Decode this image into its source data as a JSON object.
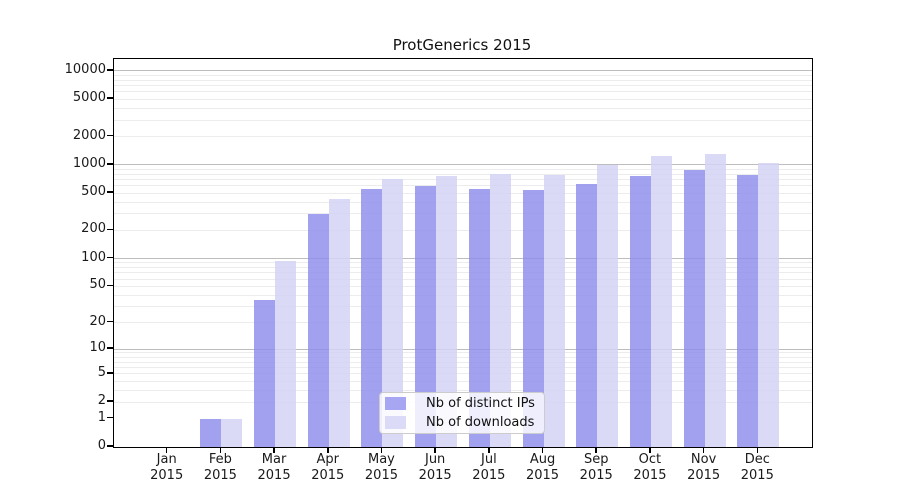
{
  "figure": {
    "background": "#ffffff"
  },
  "chart_data": {
    "type": "bar",
    "title": "ProtGenerics 2015",
    "x_tick_labels": [
      [
        "Jan",
        "2015"
      ],
      [
        "Feb",
        "2015"
      ],
      [
        "Mar",
        "2015"
      ],
      [
        "Apr",
        "2015"
      ],
      [
        "May",
        "2015"
      ],
      [
        "Jun",
        "2015"
      ],
      [
        "Jul",
        "2015"
      ],
      [
        "Aug",
        "2015"
      ],
      [
        "Sep",
        "2015"
      ],
      [
        "Oct",
        "2015"
      ],
      [
        "Nov",
        "2015"
      ],
      [
        "Dec",
        "2015"
      ]
    ],
    "series": [
      {
        "name": "Nb of distinct IPs",
        "color": "#a6a6f2",
        "fill": "rgba(140,140,237,0.82)",
        "values": [
          0,
          1,
          36,
          300,
          560,
          590,
          550,
          540,
          620,
          760,
          890,
          790
        ]
      },
      {
        "name": "Nb of downloads",
        "color": "#dbdbf8",
        "fill": "rgba(212,212,246,0.85)",
        "values": [
          0,
          1,
          94,
          430,
          710,
          770,
          800,
          780,
          1000,
          1250,
          1300,
          1060
        ]
      }
    ],
    "yscale": "log1p",
    "ylim": [
      0,
      13400
    ],
    "yticks": [
      0,
      1,
      2,
      5,
      10,
      20,
      50,
      100,
      200,
      500,
      1000,
      2000,
      5000,
      10000
    ],
    "grid": {
      "major_values": [
        10,
        100,
        1000,
        10000
      ],
      "minor_values": [
        2,
        3,
        4,
        5,
        6,
        7,
        8,
        9,
        20,
        30,
        40,
        50,
        60,
        70,
        80,
        90,
        200,
        300,
        400,
        500,
        600,
        700,
        800,
        900,
        2000,
        3000,
        4000,
        5000,
        6000,
        7000,
        8000,
        9000
      ],
      "major_color": "#bdbdbd",
      "minor_color": "#ececec"
    },
    "legend": {
      "location": "lower center"
    },
    "axis_color": "#000000",
    "tick_label_color": "#1a1a1a"
  }
}
